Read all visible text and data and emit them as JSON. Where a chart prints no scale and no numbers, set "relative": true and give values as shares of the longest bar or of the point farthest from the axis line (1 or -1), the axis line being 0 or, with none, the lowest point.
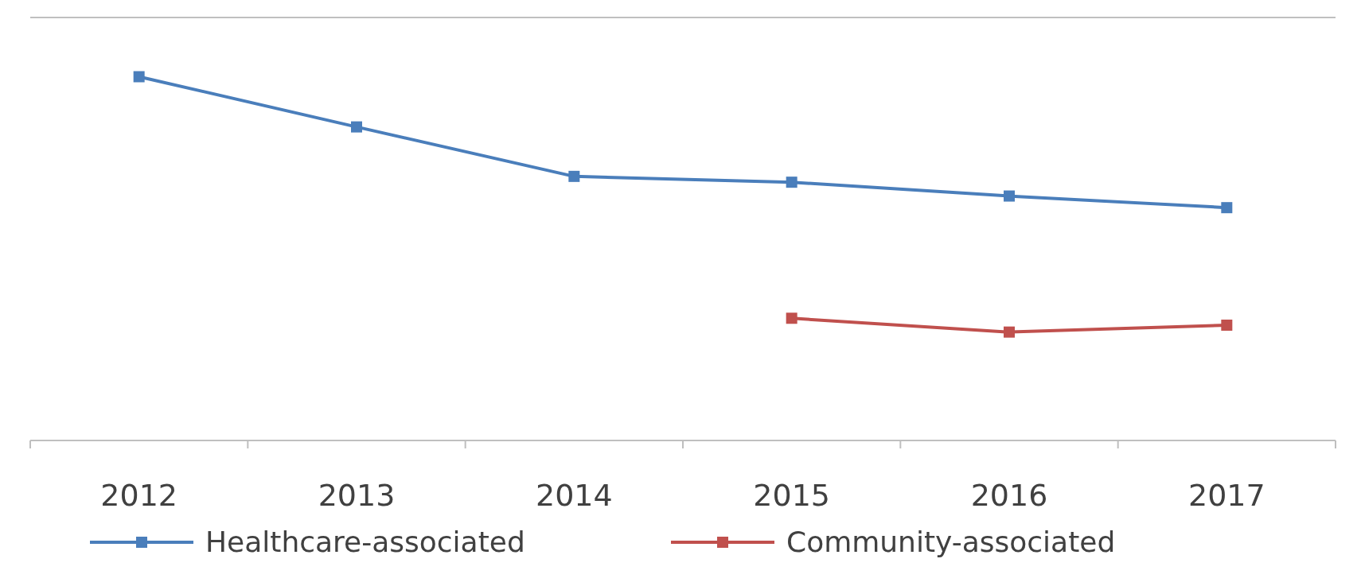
{
  "chart_data": {
    "type": "line",
    "relative": true,
    "categories": [
      "2012",
      "2013",
      "2014",
      "2015",
      "2016",
      "2017"
    ],
    "series": [
      {
        "name": "Healthcare-associated",
        "color": "#4a7ebb",
        "values": [
          1,
          0.862,
          0.726,
          0.71,
          0.672,
          0.64
        ]
      },
      {
        "name": "Community-associated",
        "color": "#c0504d",
        "values": [
          null,
          null,
          null,
          0.336,
          0.298,
          0.317
        ]
      }
    ],
    "marker": "square",
    "line_style": "solid",
    "legend": "bottom"
  }
}
